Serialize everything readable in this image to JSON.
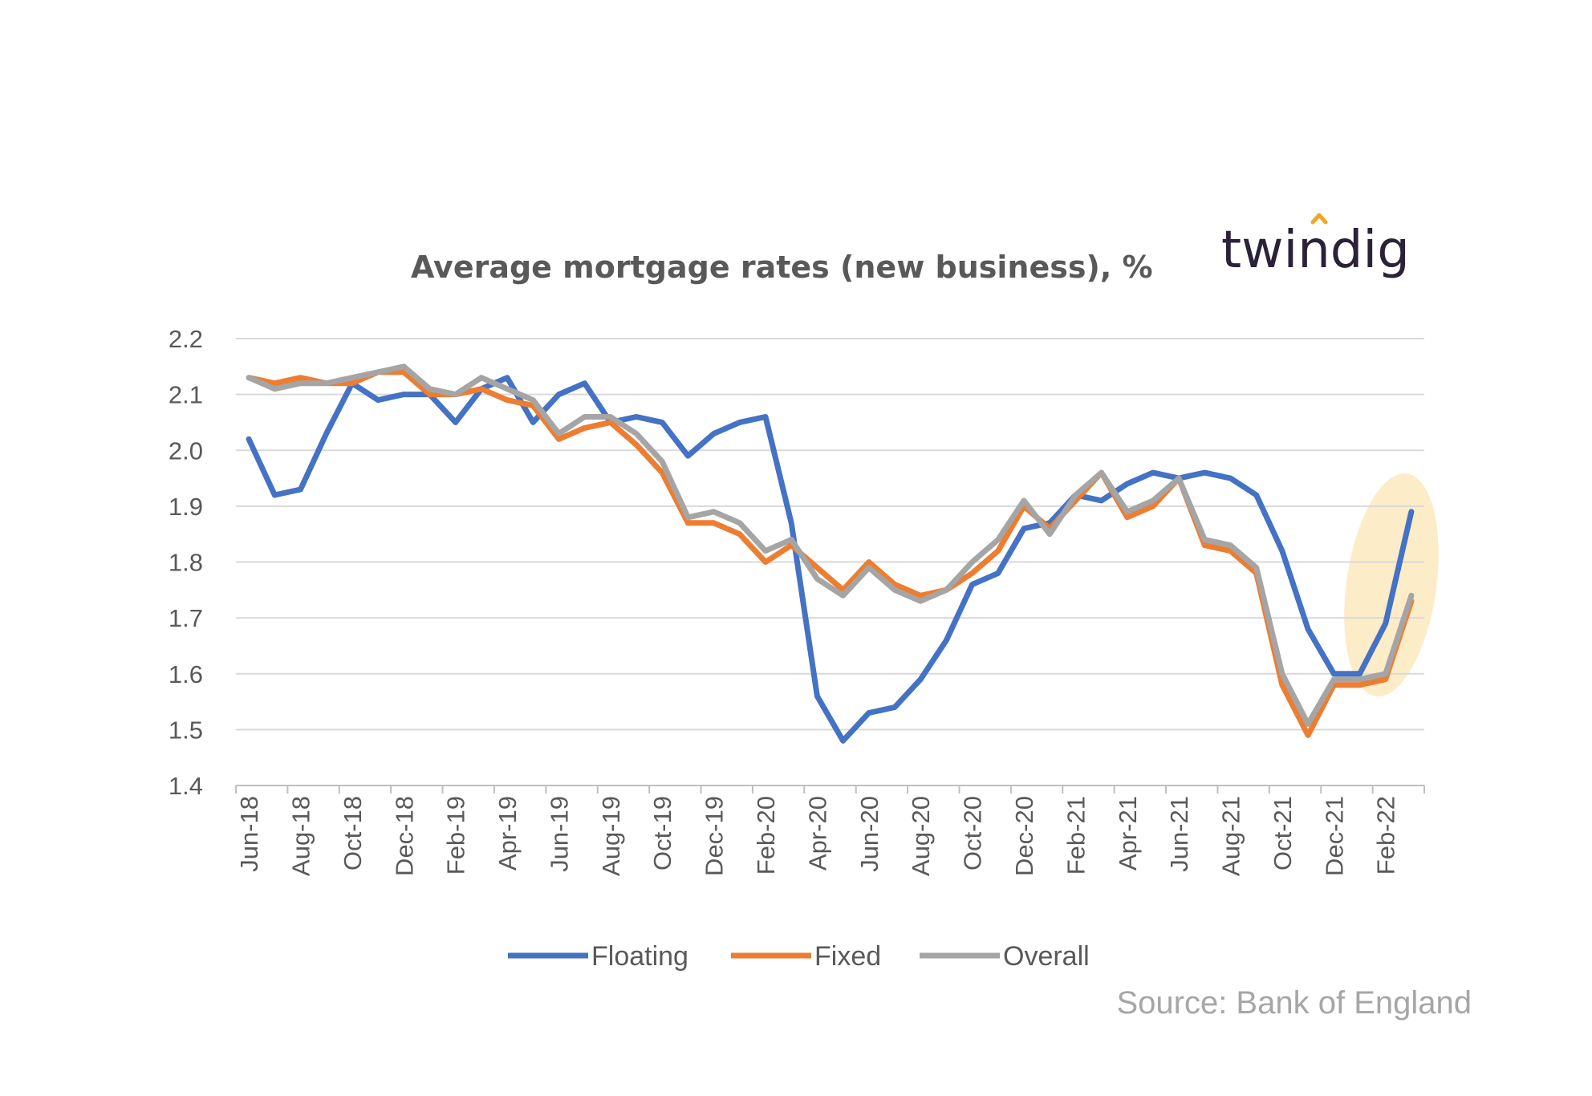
{
  "logo": {
    "text": "twindig",
    "accent_color": "#f5a623"
  },
  "source": "Source: Bank of England",
  "chart_data": {
    "type": "line",
    "title": "Average mortgage rates (new business), %",
    "xlabel": "",
    "ylabel": "",
    "ylim": [
      1.4,
      2.2
    ],
    "yticks": [
      "1.4",
      "1.5",
      "1.6",
      "1.7",
      "1.8",
      "1.9",
      "2.0",
      "2.1",
      "2.2"
    ],
    "grid": true,
    "legend_position": "bottom",
    "categories": [
      "Jun-18",
      "Jul-18",
      "Aug-18",
      "Sep-18",
      "Oct-18",
      "Nov-18",
      "Dec-18",
      "Jan-19",
      "Feb-19",
      "Mar-19",
      "Apr-19",
      "May-19",
      "Jun-19",
      "Jul-19",
      "Aug-19",
      "Sep-19",
      "Oct-19",
      "Nov-19",
      "Dec-19",
      "Jan-20",
      "Feb-20",
      "Mar-20",
      "Apr-20",
      "May-20",
      "Jun-20",
      "Jul-20",
      "Aug-20",
      "Sep-20",
      "Oct-20",
      "Nov-20",
      "Dec-20",
      "Jan-21",
      "Feb-21",
      "Mar-21",
      "Apr-21",
      "May-21",
      "Jun-21",
      "Jul-21",
      "Aug-21",
      "Sep-21",
      "Oct-21",
      "Nov-21",
      "Dec-21",
      "Jan-22",
      "Feb-22",
      "Mar-22"
    ],
    "x_tick_labels": [
      "Jun-18",
      "Aug-18",
      "Oct-18",
      "Dec-18",
      "Feb-19",
      "Apr-19",
      "Jun-19",
      "Aug-19",
      "Oct-19",
      "Dec-19",
      "Feb-20",
      "Apr-20",
      "Jun-20",
      "Aug-20",
      "Oct-20",
      "Dec-20",
      "Feb-21",
      "Apr-21",
      "Jun-21",
      "Aug-21",
      "Oct-21",
      "Dec-21",
      "Feb-22"
    ],
    "highlight": {
      "note": "highlighted final months",
      "color": "#fbe5b6"
    },
    "series": [
      {
        "name": "Floating",
        "color": "#4472c4",
        "values": [
          2.02,
          1.92,
          1.93,
          2.03,
          2.12,
          2.09,
          2.1,
          2.1,
          2.05,
          2.11,
          2.13,
          2.05,
          2.1,
          2.12,
          2.05,
          2.06,
          2.05,
          1.99,
          2.03,
          2.05,
          2.06,
          1.87,
          1.56,
          1.48,
          1.53,
          1.54,
          1.59,
          1.66,
          1.76,
          1.78,
          1.86,
          1.87,
          1.92,
          1.91,
          1.94,
          1.96,
          1.95,
          1.96,
          1.95,
          1.92,
          1.82,
          1.68,
          1.6,
          1.6,
          1.69,
          1.89
        ]
      },
      {
        "name": "Fixed",
        "color": "#ed7d31",
        "values": [
          2.13,
          2.12,
          2.13,
          2.12,
          2.12,
          2.14,
          2.14,
          2.1,
          2.1,
          2.11,
          2.09,
          2.08,
          2.02,
          2.04,
          2.05,
          2.01,
          1.96,
          1.87,
          1.87,
          1.85,
          1.8,
          1.83,
          1.79,
          1.75,
          1.8,
          1.76,
          1.74,
          1.75,
          1.78,
          1.82,
          1.9,
          1.86,
          1.91,
          1.96,
          1.88,
          1.9,
          1.95,
          1.83,
          1.82,
          1.78,
          1.58,
          1.49,
          1.58,
          1.58,
          1.59,
          1.73
        ]
      },
      {
        "name": "Overall",
        "color": "#a5a5a5",
        "values": [
          2.13,
          2.11,
          2.12,
          2.12,
          2.13,
          2.14,
          2.15,
          2.11,
          2.1,
          2.13,
          2.11,
          2.09,
          2.03,
          2.06,
          2.06,
          2.03,
          1.98,
          1.88,
          1.89,
          1.87,
          1.82,
          1.84,
          1.77,
          1.74,
          1.79,
          1.75,
          1.73,
          1.75,
          1.8,
          1.84,
          1.91,
          1.85,
          1.92,
          1.96,
          1.89,
          1.91,
          1.95,
          1.84,
          1.83,
          1.79,
          1.6,
          1.51,
          1.59,
          1.59,
          1.6,
          1.74
        ]
      }
    ]
  }
}
